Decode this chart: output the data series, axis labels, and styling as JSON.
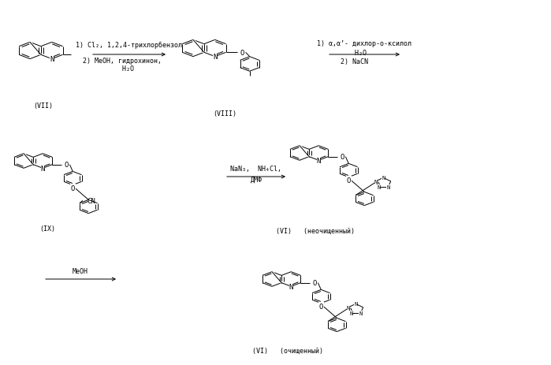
{
  "bg_color": "#ffffff",
  "line_color": "#000000",
  "fig_width": 6.99,
  "fig_height": 4.64,
  "dpi": 100,
  "arrow1_label_top": "1) Cl₂, 1,2,4-трихлорбензол",
  "arrow1_label_bot1": "2) MeOH, гидрохинон,",
  "arrow1_label_bot2": "   H₂O",
  "arrow2_label_top": "1) α,α’- дихлор-о-ксилол",
  "arrow2_label_mid": "   H₂O",
  "arrow2_label_bot": "2) NaCN",
  "arrow3_label1": "NaN₃,  NH₄Cl,",
  "arrow3_label2": "ДМФ",
  "arrow4_label": "MeOH",
  "label_VII": "(VII)",
  "label_VIII": "(VIII)",
  "label_IX": "(IX)",
  "label_VI_crude": "(VI)   (неочищенный)",
  "label_VI_pure": "(VI)   (очищенный)"
}
